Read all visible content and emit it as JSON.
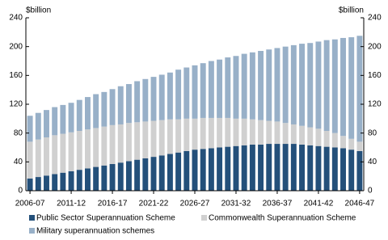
{
  "chart_data": {
    "type": "stacked_bar",
    "y_unit": "$billion",
    "y2_unit": "$billion",
    "categories": [
      "2006-07",
      null,
      null,
      null,
      null,
      "2011-12",
      null,
      null,
      null,
      null,
      "2016-17",
      null,
      null,
      null,
      null,
      "2021-22",
      null,
      null,
      null,
      null,
      "2026-27",
      null,
      null,
      null,
      null,
      "2031-32",
      null,
      null,
      null,
      null,
      "2036-37",
      null,
      null,
      null,
      null,
      "2041-42",
      null,
      null,
      null,
      null,
      "2046-47"
    ],
    "series": [
      {
        "name": "Public Sector Superannuation Scheme",
        "color": "#24507a",
        "values": [
          17,
          19,
          21,
          23,
          25,
          27,
          29,
          31,
          33,
          35,
          37,
          39,
          41,
          43,
          45,
          47,
          49,
          51,
          53,
          55,
          57,
          58,
          59,
          60,
          61,
          62,
          63,
          64,
          64,
          65,
          65,
          65,
          65,
          64,
          63,
          62,
          61,
          60,
          59,
          57,
          55
        ]
      },
      {
        "name": "Commonwealth Superannuation Scheme",
        "color": "#d0d0d0",
        "values": [
          51,
          52,
          53,
          54,
          54,
          54,
          54,
          54,
          54,
          54,
          54,
          53,
          53,
          52,
          51,
          50,
          49,
          48,
          46,
          45,
          43,
          43,
          42,
          41,
          40,
          38,
          37,
          35,
          34,
          32,
          31,
          29,
          27,
          26,
          25,
          24,
          22,
          20,
          17,
          15,
          13
        ]
      },
      {
        "name": "Military superannuation schemes",
        "color": "#98b0c8",
        "values": [
          36,
          37,
          38,
          39,
          40,
          41,
          43,
          45,
          47,
          48,
          50,
          53,
          54,
          57,
          59,
          61,
          63,
          65,
          69,
          71,
          74,
          76,
          79,
          81,
          84,
          87,
          90,
          93,
          96,
          99,
          102,
          106,
          110,
          114,
          117,
          121,
          126,
          130,
          136,
          141,
          147
        ]
      }
    ],
    "ylim": [
      0,
      240
    ],
    "yticks": [
      0,
      40,
      80,
      120,
      160,
      200,
      240
    ],
    "y2lim": [
      0,
      240
    ],
    "y2ticks": [
      0,
      40,
      80,
      120,
      160,
      200,
      240
    ]
  }
}
